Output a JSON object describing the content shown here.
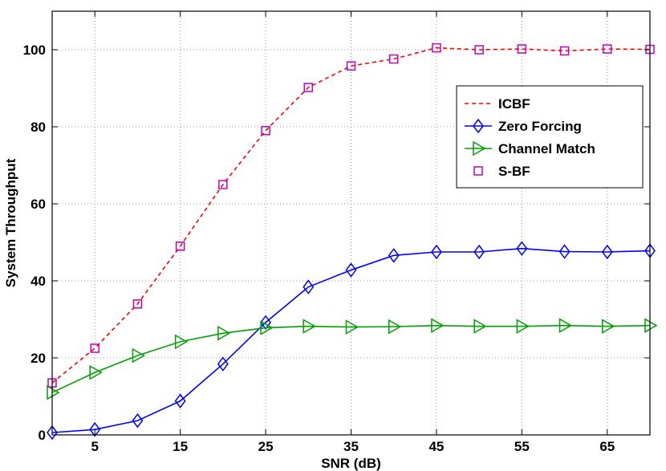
{
  "chart_data": {
    "type": "line",
    "title": "",
    "xlabel": "SNR (dB)",
    "ylabel": "System Throughput",
    "xlim": [
      0,
      70
    ],
    "ylim": [
      0,
      110
    ],
    "grid": true,
    "legend_position": "top-right",
    "x_ticks": [
      5,
      15,
      25,
      35,
      45,
      55,
      65
    ],
    "y_ticks": [
      0,
      20,
      40,
      60,
      80,
      100
    ],
    "x": [
      0,
      5,
      10,
      15,
      20,
      25,
      30,
      35,
      40,
      45,
      50,
      55,
      60,
      65,
      70
    ],
    "series": [
      {
        "name": "ICBF",
        "color": "#ff0000",
        "line": "dashed",
        "marker": "none",
        "values": [
          13.5,
          22.5,
          34,
          49,
          65,
          79,
          90.2,
          95.8,
          97.6,
          100.5,
          100,
          100.2,
          99.7,
          100.2,
          100.1
        ]
      },
      {
        "name": "Zero Forcing",
        "color": "#0000ff",
        "line": "solid",
        "marker": "diamond",
        "values": [
          0.6,
          1.4,
          3.7,
          8.8,
          18.4,
          29.2,
          38.4,
          42.8,
          46.6,
          47.5,
          47.5,
          48.4,
          47.6,
          47.5,
          47.8
        ]
      },
      {
        "name": "Channel Match",
        "color": "#00a000",
        "line": "solid",
        "marker": "triangle-right",
        "values": [
          11.0,
          16.2,
          20.6,
          24.2,
          26.4,
          27.8,
          28.2,
          28.0,
          28.1,
          28.4,
          28.2,
          28.2,
          28.4,
          28.2,
          28.4
        ]
      },
      {
        "name": "S-BF",
        "color": "#bf00bf",
        "line": "none",
        "marker": "square",
        "values": [
          13.5,
          22.5,
          34,
          49,
          65,
          79,
          90.2,
          95.8,
          97.6,
          100.5,
          100,
          100.2,
          99.7,
          100.2,
          100.1
        ]
      }
    ]
  }
}
